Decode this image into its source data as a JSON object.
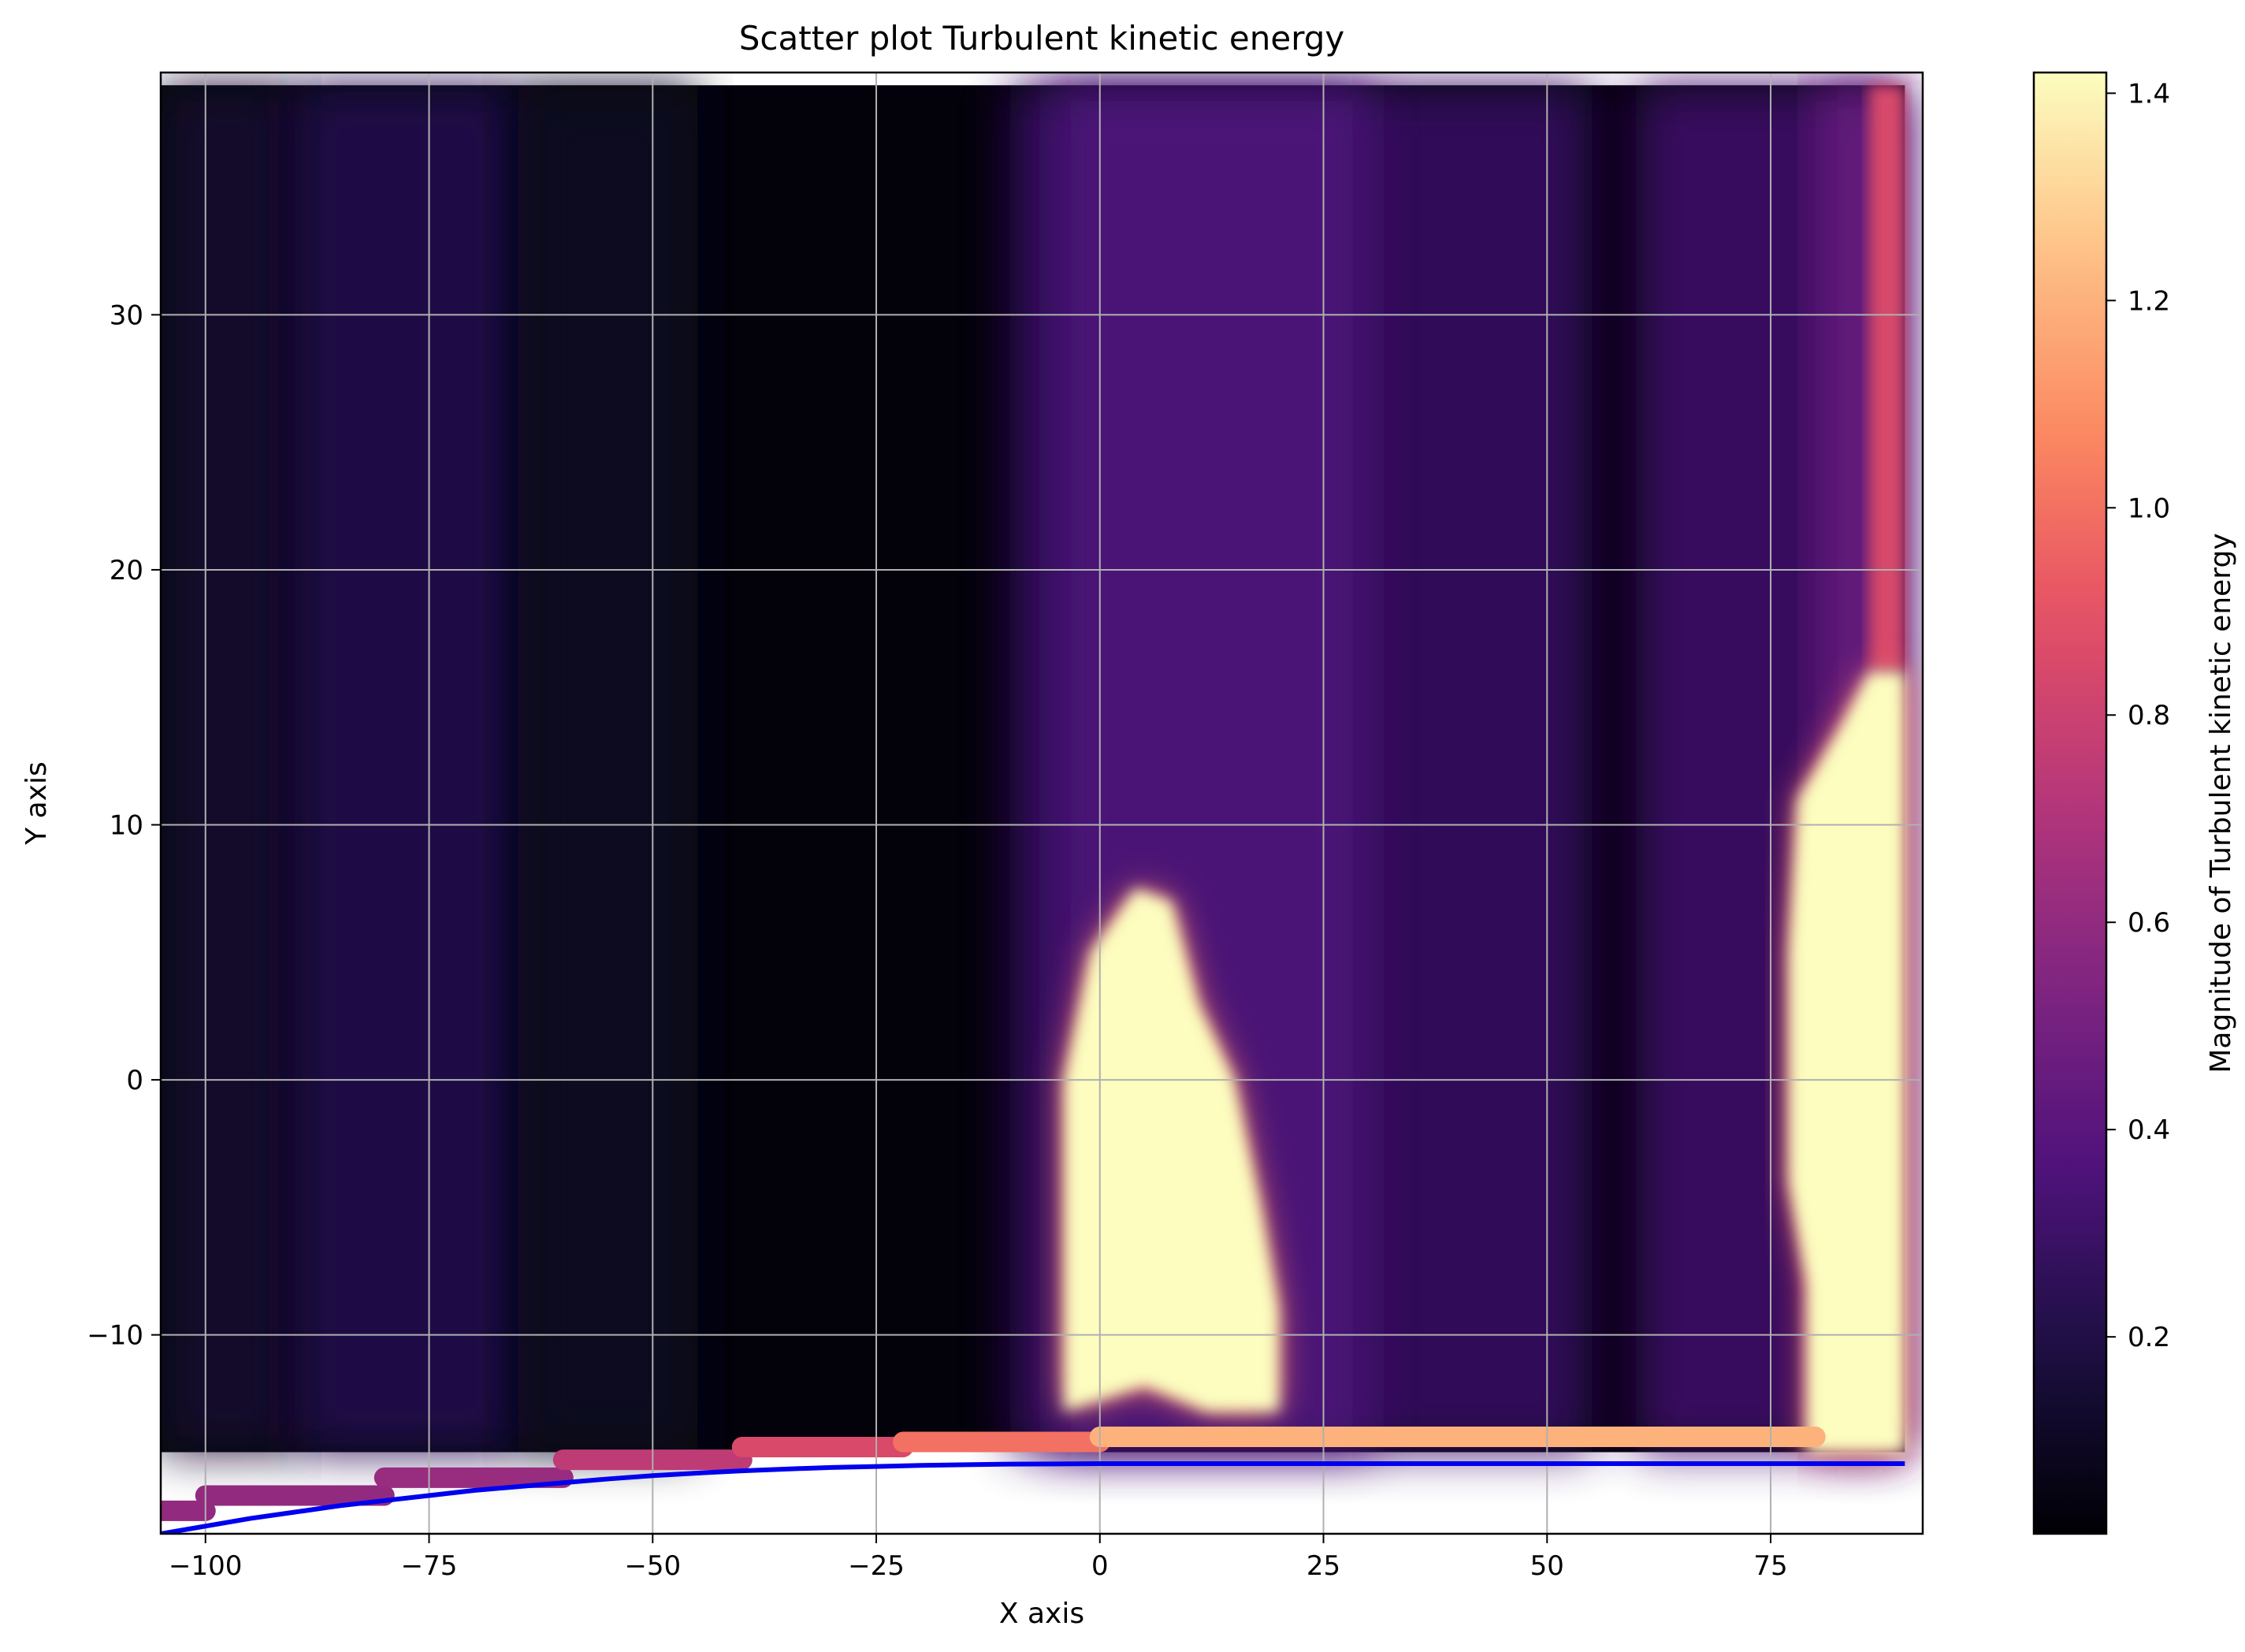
{
  "chart_data": {
    "type": "scatter",
    "title": "Scatter plot Turbulent kinetic energy",
    "xlabel": "X axis",
    "ylabel": "Y axis",
    "xlim": [
      -105,
      92
    ],
    "ylim": [
      -17.8,
      39.5
    ],
    "xticks": [
      -100,
      -75,
      -50,
      -25,
      0,
      25,
      50,
      75
    ],
    "xtick_labels": [
      "−100",
      "−75",
      "−50",
      "−25",
      "0",
      "25",
      "50",
      "75"
    ],
    "yticks": [
      -10,
      0,
      10,
      20,
      30
    ],
    "ytick_labels": [
      "−10",
      "0",
      "10",
      "20",
      "30"
    ],
    "grid": true,
    "colormap": "magma",
    "colorbar": {
      "label": "Magnitude of Turbulent kinetic energy",
      "range": [
        0.01,
        1.42
      ],
      "ticks": [
        0.2,
        0.4,
        0.6,
        0.8,
        1.0,
        1.2,
        1.4
      ],
      "tick_labels": [
        "0.2",
        "0.4",
        "0.6",
        "0.8",
        "1.0",
        "1.2",
        "1.4"
      ]
    },
    "field": {
      "x_range": [
        -105,
        90
      ],
      "y_top": 39,
      "levels": [
        {
          "name": "background",
          "value": 0.03
        },
        {
          "name": "band-left-a",
          "x": [
            -105,
            -90
          ],
          "value": 0.13
        },
        {
          "name": "band-left-b",
          "x": [
            -90,
            -65
          ],
          "value": 0.22
        },
        {
          "name": "band-left-c",
          "x": [
            -65,
            -45
          ],
          "value": 0.1
        },
        {
          "name": "band-mid",
          "x": [
            -10,
            55
          ],
          "value": 0.28
        },
        {
          "name": "band-mid-core",
          "x": [
            -5,
            30
          ],
          "value": 0.36
        },
        {
          "name": "band-right",
          "x": [
            60,
            90
          ],
          "value": 0.3
        },
        {
          "name": "band-right-edge",
          "x": [
            80,
            90
          ],
          "value": 0.45
        }
      ],
      "hot_region_center": {
        "halo_value": 1.0,
        "core_value": 1.42,
        "outline": [
          [
            -4,
            -13
          ],
          [
            -4,
            0
          ],
          [
            -1,
            5
          ],
          [
            4,
            7.5
          ],
          [
            8,
            7
          ],
          [
            11,
            3
          ],
          [
            15,
            0
          ],
          [
            18,
            -5
          ],
          [
            20,
            -9
          ],
          [
            20,
            -13
          ],
          [
            12,
            -13
          ],
          [
            5,
            -12
          ]
        ]
      },
      "hot_region_right": {
        "halo_value": 0.95,
        "core_value": 1.42,
        "outline": [
          [
            79,
            -14.6
          ],
          [
            79,
            -8
          ],
          [
            77,
            -4
          ],
          [
            77,
            5
          ],
          [
            78,
            11
          ],
          [
            83,
            14
          ],
          [
            86,
            16
          ],
          [
            90,
            16
          ],
          [
            90,
            -14.6
          ]
        ]
      },
      "upper_right_edge": {
        "x": [
          86,
          90
        ],
        "y": [
          16,
          39
        ],
        "value": 0.85
      }
    },
    "wall_markers": [
      {
        "x": [
          -105,
          -100
        ],
        "y": -16.9,
        "value": 0.6
      },
      {
        "x": [
          -100,
          -80
        ],
        "y": -16.3,
        "value": 0.6
      },
      {
        "x": [
          -80,
          -60
        ],
        "y": -15.6,
        "value": 0.62
      },
      {
        "x": [
          -60,
          -40
        ],
        "y": -14.9,
        "value": 0.75
      },
      {
        "x": [
          -40,
          -22
        ],
        "y": -14.4,
        "value": 0.85
      },
      {
        "x": [
          -22,
          0
        ],
        "y": -14.2,
        "value": 1.0
      },
      {
        "x": [
          0,
          80
        ],
        "y": -14.0,
        "value": 1.2
      }
    ],
    "series": [
      {
        "type": "line",
        "color": "#0000ee",
        "x": [
          -105,
          -100,
          -95,
          -90,
          -85,
          -80,
          -75,
          -70,
          -65,
          -60,
          -55,
          -50,
          -45,
          -40,
          -35,
          -30,
          -25,
          -20,
          -15,
          -10,
          -5,
          0,
          10,
          20,
          30,
          40,
          50,
          60,
          70,
          80,
          90
        ],
        "y": [
          -17.8,
          -17.5,
          -17.2,
          -16.95,
          -16.7,
          -16.5,
          -16.3,
          -16.1,
          -15.95,
          -15.8,
          -15.65,
          -15.52,
          -15.42,
          -15.33,
          -15.26,
          -15.2,
          -15.16,
          -15.12,
          -15.09,
          -15.07,
          -15.06,
          -15.05,
          -15.05,
          -15.05,
          -15.05,
          -15.05,
          -15.05,
          -15.05,
          -15.05,
          -15.05,
          -15.05
        ]
      }
    ]
  }
}
